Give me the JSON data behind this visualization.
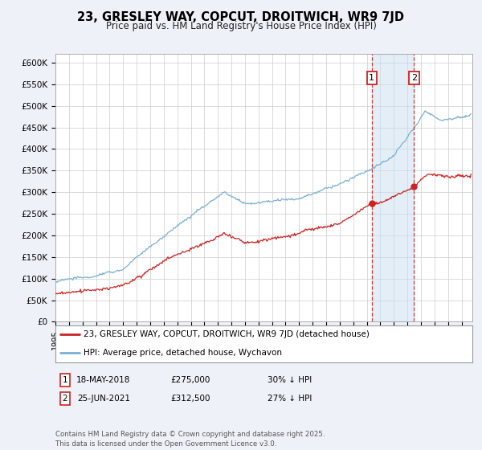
{
  "title": "23, GRESLEY WAY, COPCUT, DROITWICH, WR9 7JD",
  "subtitle": "Price paid vs. HM Land Registry's House Price Index (HPI)",
  "ylabel_ticks": [
    "£0",
    "£50K",
    "£100K",
    "£150K",
    "£200K",
    "£250K",
    "£300K",
    "£350K",
    "£400K",
    "£450K",
    "£500K",
    "£550K",
    "£600K"
  ],
  "ytick_values": [
    0,
    50000,
    100000,
    150000,
    200000,
    250000,
    300000,
    350000,
    400000,
    450000,
    500000,
    550000,
    600000
  ],
  "ylim": [
    0,
    620000
  ],
  "xlim_start": 1995.0,
  "xlim_end": 2025.8,
  "hpi_color": "#7ab0d4",
  "price_color": "#cc2222",
  "marker1_date": 2018.37,
  "marker2_date": 2021.48,
  "marker1_label": "18-MAY-2018",
  "marker2_label": "25-JUN-2021",
  "marker1_price": 275000,
  "marker2_price": 312500,
  "marker1_pct": "30% ↓ HPI",
  "marker2_pct": "27% ↓ HPI",
  "legend_property": "23, GRESLEY WAY, COPCUT, DROITWICH, WR9 7JD (detached house)",
  "legend_hpi": "HPI: Average price, detached house, Wychavon",
  "footer": "Contains HM Land Registry data © Crown copyright and database right 2025.\nThis data is licensed under the Open Government Licence v3.0.",
  "bg_color": "#eef2f8",
  "plot_bg": "#ffffff",
  "grid_color": "#cccccc"
}
